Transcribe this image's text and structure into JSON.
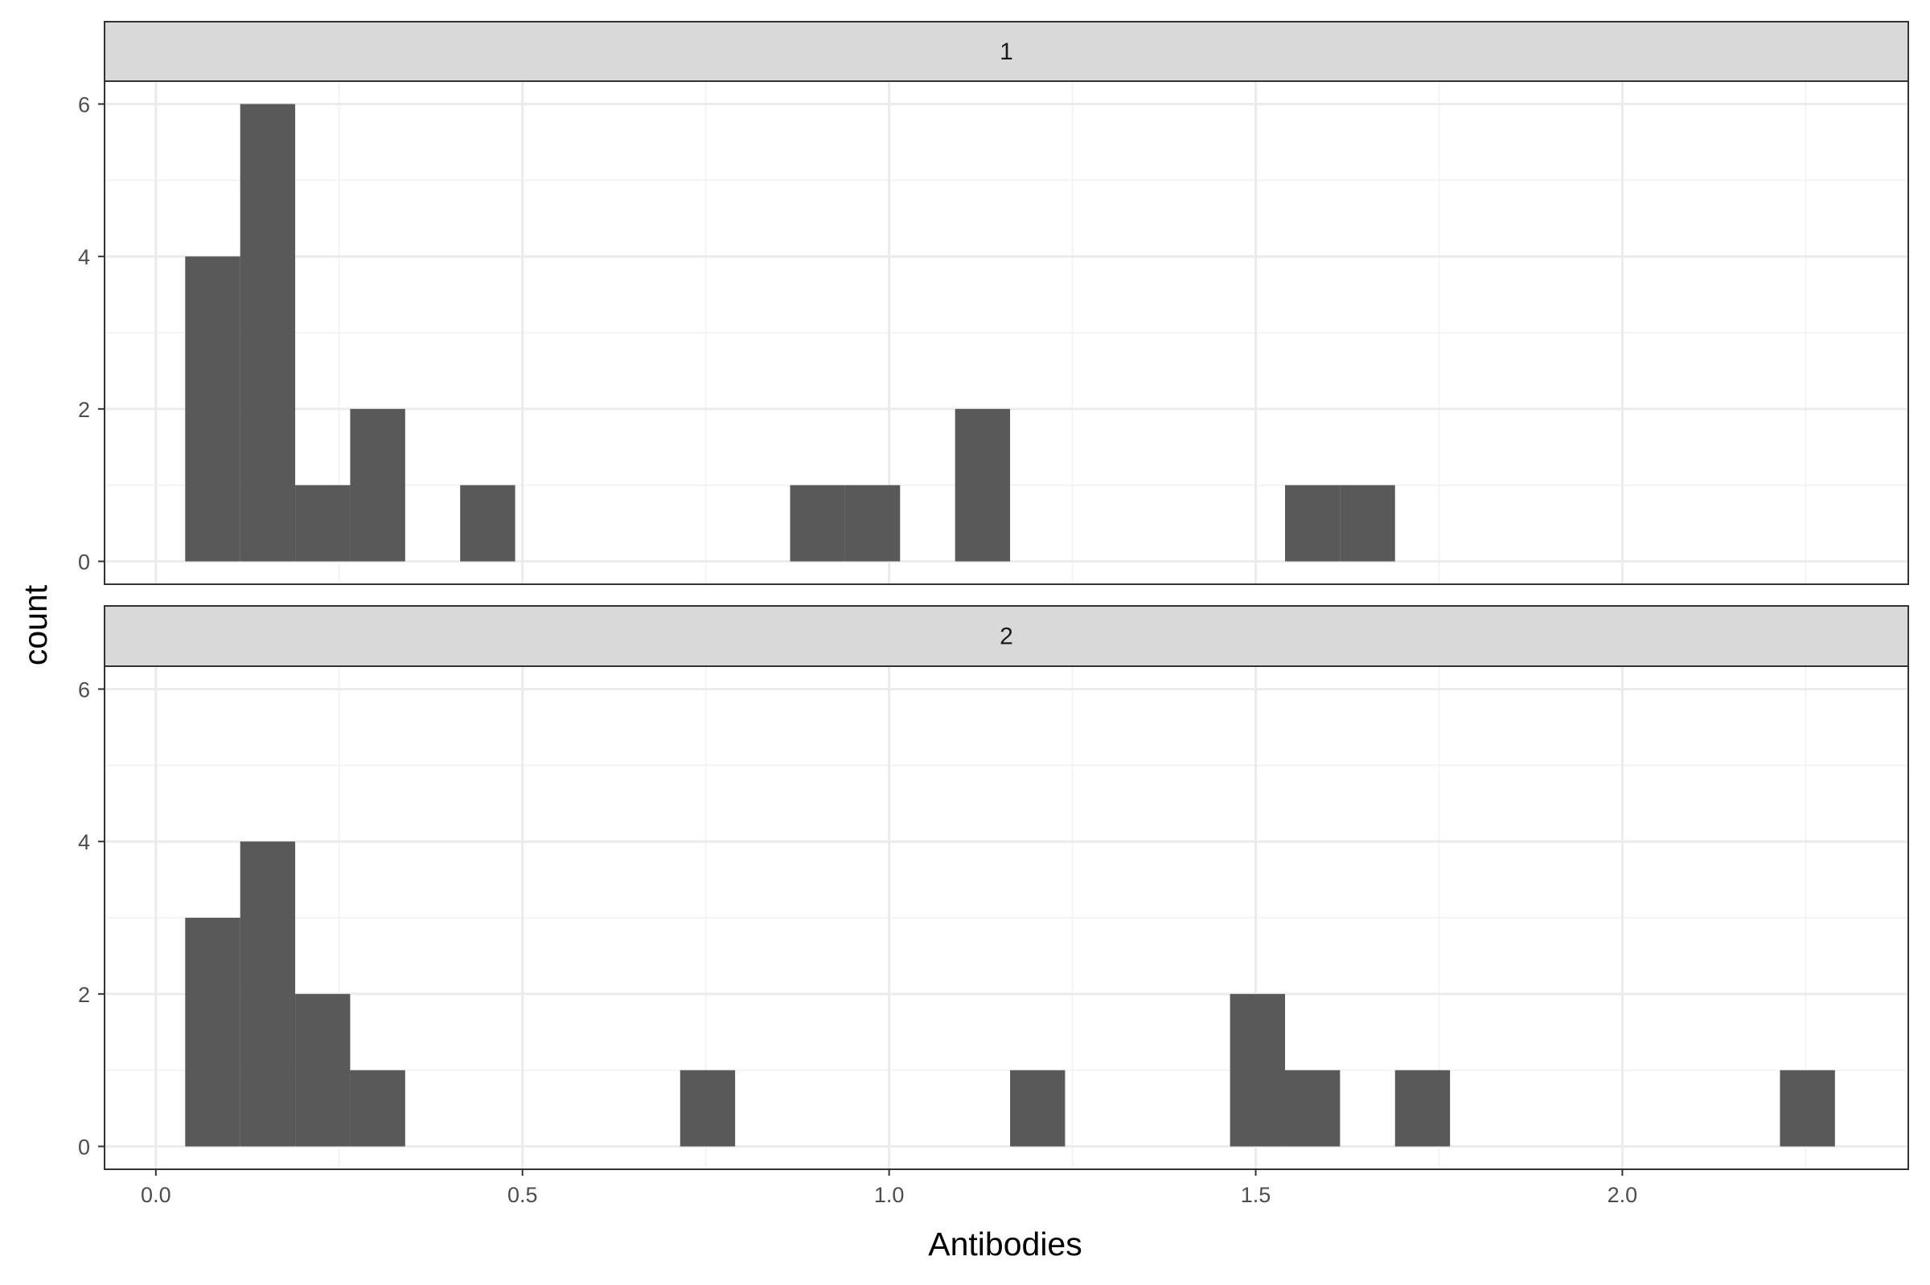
{
  "chart_data": {
    "type": "bar",
    "subtype": "faceted-histogram",
    "xlabel": "Antibodies",
    "ylabel": "count",
    "xlim": [
      -0.07,
      2.39
    ],
    "ylim": [
      -0.3,
      6.3
    ],
    "x_ticks": [
      0.0,
      0.5,
      1.0,
      1.5,
      2.0
    ],
    "x_tick_labels": [
      "0.0",
      "0.5",
      "1.0",
      "1.5",
      "2.0"
    ],
    "y_ticks": [
      0,
      2,
      4,
      6
    ],
    "y_tick_labels": [
      "0",
      "2",
      "4",
      "6"
    ],
    "bin_width": 0.075,
    "grid": true,
    "colors": {
      "bar": "#595959",
      "strip_fill": "#d9d9d9",
      "panel_border": "#333333",
      "grid_major": "#ebebeb",
      "grid_minor": "#f2f2f2"
    },
    "facets": [
      {
        "label": "1",
        "bars": [
          {
            "x0": 0.04,
            "x1": 0.115,
            "count": 4
          },
          {
            "x0": 0.115,
            "x1": 0.19,
            "count": 6
          },
          {
            "x0": 0.19,
            "x1": 0.265,
            "count": 1
          },
          {
            "x0": 0.265,
            "x1": 0.34,
            "count": 2
          },
          {
            "x0": 0.415,
            "x1": 0.49,
            "count": 1
          },
          {
            "x0": 0.865,
            "x1": 0.94,
            "count": 1
          },
          {
            "x0": 0.94,
            "x1": 1.015,
            "count": 1
          },
          {
            "x0": 1.09,
            "x1": 1.165,
            "count": 2
          },
          {
            "x0": 1.54,
            "x1": 1.615,
            "count": 1
          },
          {
            "x0": 1.615,
            "x1": 1.69,
            "count": 1
          }
        ]
      },
      {
        "label": "2",
        "bars": [
          {
            "x0": 0.04,
            "x1": 0.115,
            "count": 3
          },
          {
            "x0": 0.115,
            "x1": 0.19,
            "count": 4
          },
          {
            "x0": 0.19,
            "x1": 0.265,
            "count": 2
          },
          {
            "x0": 0.265,
            "x1": 0.34,
            "count": 1
          },
          {
            "x0": 0.715,
            "x1": 0.79,
            "count": 1
          },
          {
            "x0": 1.165,
            "x1": 1.24,
            "count": 1
          },
          {
            "x0": 1.465,
            "x1": 1.54,
            "count": 2
          },
          {
            "x0": 1.54,
            "x1": 1.615,
            "count": 1
          },
          {
            "x0": 1.69,
            "x1": 1.765,
            "count": 1
          },
          {
            "x0": 2.215,
            "x1": 2.29,
            "count": 1
          }
        ]
      }
    ]
  }
}
